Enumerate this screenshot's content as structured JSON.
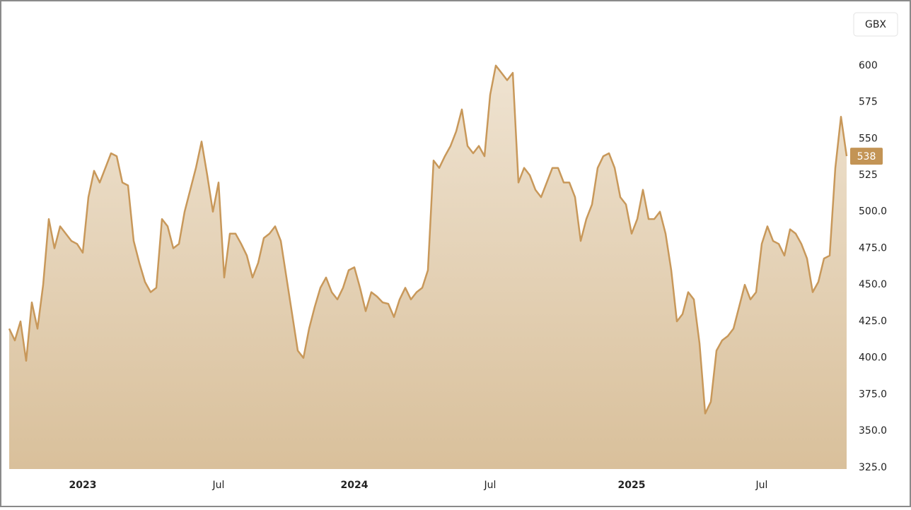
{
  "chart_data": {
    "type": "area",
    "currency": "GBX",
    "color": "#c8985a",
    "categories": [
      null,
      null,
      null,
      null,
      null,
      null,
      null,
      null,
      null,
      null,
      null,
      null,
      null,
      "2023",
      null,
      null,
      null,
      null,
      null,
      null,
      null,
      null,
      null,
      null,
      null,
      null,
      null,
      null,
      null,
      null,
      null,
      null,
      null,
      null,
      null,
      null,
      null,
      "Jul",
      null,
      null,
      null,
      null,
      null,
      null,
      null,
      null,
      null,
      null,
      null,
      null,
      null,
      null,
      null,
      null,
      null,
      null,
      null,
      null,
      null,
      null,
      null,
      "2024",
      null,
      null,
      null,
      null,
      null,
      null,
      null,
      null,
      null,
      null,
      null,
      null,
      null,
      null,
      null,
      null,
      null,
      null,
      null,
      null,
      null,
      null,
      null,
      "Jul",
      null,
      null,
      null,
      null,
      null,
      null,
      null,
      null,
      null,
      null,
      null,
      null,
      null,
      null,
      null,
      null,
      null,
      null,
      null,
      null,
      null,
      null,
      null,
      null,
      "2025",
      null,
      null,
      null,
      null,
      null,
      null,
      null,
      null,
      null,
      null,
      null,
      null,
      null,
      null,
      null,
      null,
      null,
      null,
      null,
      null,
      null,
      null,
      "Jul",
      null,
      null,
      null,
      null,
      null,
      null,
      null,
      null,
      null,
      null,
      null,
      null,
      null,
      null,
      null
    ],
    "series": [
      {
        "values": [
          420,
          412,
          425,
          398,
          438,
          420,
          450,
          495,
          475,
          490,
          485,
          480,
          478,
          472,
          510,
          528,
          520,
          530,
          540,
          538,
          520,
          518,
          480,
          465,
          452,
          445,
          448,
          495,
          490,
          475,
          478,
          500,
          515,
          530,
          548,
          525,
          500,
          520,
          455,
          485,
          485,
          478,
          470,
          455,
          465,
          482,
          485,
          490,
          480,
          455,
          430,
          405,
          400,
          420,
          435,
          448,
          455,
          445,
          440,
          448,
          460,
          462,
          448,
          432,
          445,
          442,
          438,
          437,
          428,
          440,
          448,
          440,
          445,
          448,
          460,
          535,
          530,
          538,
          545,
          555,
          570,
          545,
          540,
          545,
          538,
          580,
          600,
          595,
          590,
          595,
          520,
          530,
          525,
          515,
          510,
          520,
          530,
          530,
          520,
          520,
          510,
          480,
          495,
          505,
          530,
          538,
          540,
          530,
          510,
          505,
          485,
          495,
          515,
          495,
          495,
          500,
          485,
          460,
          425,
          430,
          445,
          440,
          410,
          362,
          370,
          405,
          412,
          415,
          420,
          435,
          450,
          440,
          445,
          478,
          490,
          480,
          478,
          470,
          488,
          485,
          478,
          468,
          445,
          452,
          468,
          470,
          530,
          565,
          538
        ]
      }
    ],
    "ylim": [
      324,
      640
    ],
    "yticks": [
      {
        "value": 325,
        "label": "325.0"
      },
      {
        "value": 350,
        "label": "350.0"
      },
      {
        "value": 375,
        "label": "375.0"
      },
      {
        "value": 400,
        "label": "400.0"
      },
      {
        "value": 425,
        "label": "425.0"
      },
      {
        "value": 450,
        "label": "450.0"
      },
      {
        "value": 475,
        "label": "475.0"
      },
      {
        "value": 500,
        "label": "500.0"
      },
      525,
      550,
      575,
      600
    ]
  }
}
